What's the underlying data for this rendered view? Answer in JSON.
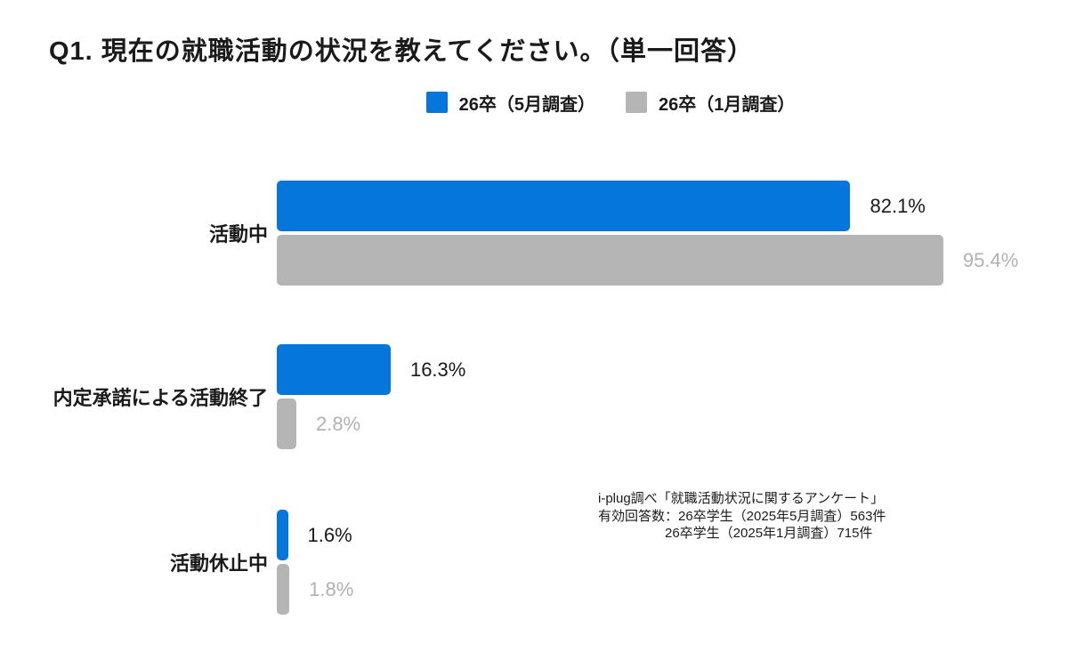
{
  "title": "Q1. 現在の就職活動の状況を教えてください。（単一回答）",
  "colors": {
    "series_may": "#0577DC",
    "series_jan": "#B5B5B5",
    "value_label_may": "#1A1A1A",
    "value_label_jan": "#B1B1B1",
    "text": "#1A1A1A",
    "background": "#FFFFFF"
  },
  "chart_data": {
    "type": "bar",
    "orientation": "horizontal",
    "title": "Q1. 現在の就職活動の状況を教えてください。（単一回答）",
    "categories": [
      "活動中",
      "内定承諾による活動終了",
      "活動休止中"
    ],
    "series": [
      {
        "name": "26卒（5月調査）",
        "color": "#0577DC",
        "label_color": "#1A1A1A",
        "values": [
          82.1,
          16.3,
          1.6
        ],
        "value_labels": [
          "82.1%",
          "16.3%",
          "1.6%"
        ]
      },
      {
        "name": "26卒（1月調査）",
        "color": "#B5B5B5",
        "label_color": "#B1B1B1",
        "values": [
          95.4,
          2.8,
          1.8
        ],
        "value_labels": [
          "95.4%",
          "2.8%",
          "1.8%"
        ]
      }
    ],
    "xlim": [
      0,
      100
    ],
    "unit": "%",
    "grid": false,
    "legend_position": "top-center",
    "value_labels_position": "outside-end"
  },
  "note": {
    "line1": "i-plug調べ「就職活動状況に関するアンケート」",
    "line2": "有効回答数：26卒学生（2025年5月調査）563件",
    "line3": "26卒学生（2025年1月調査）715件"
  }
}
